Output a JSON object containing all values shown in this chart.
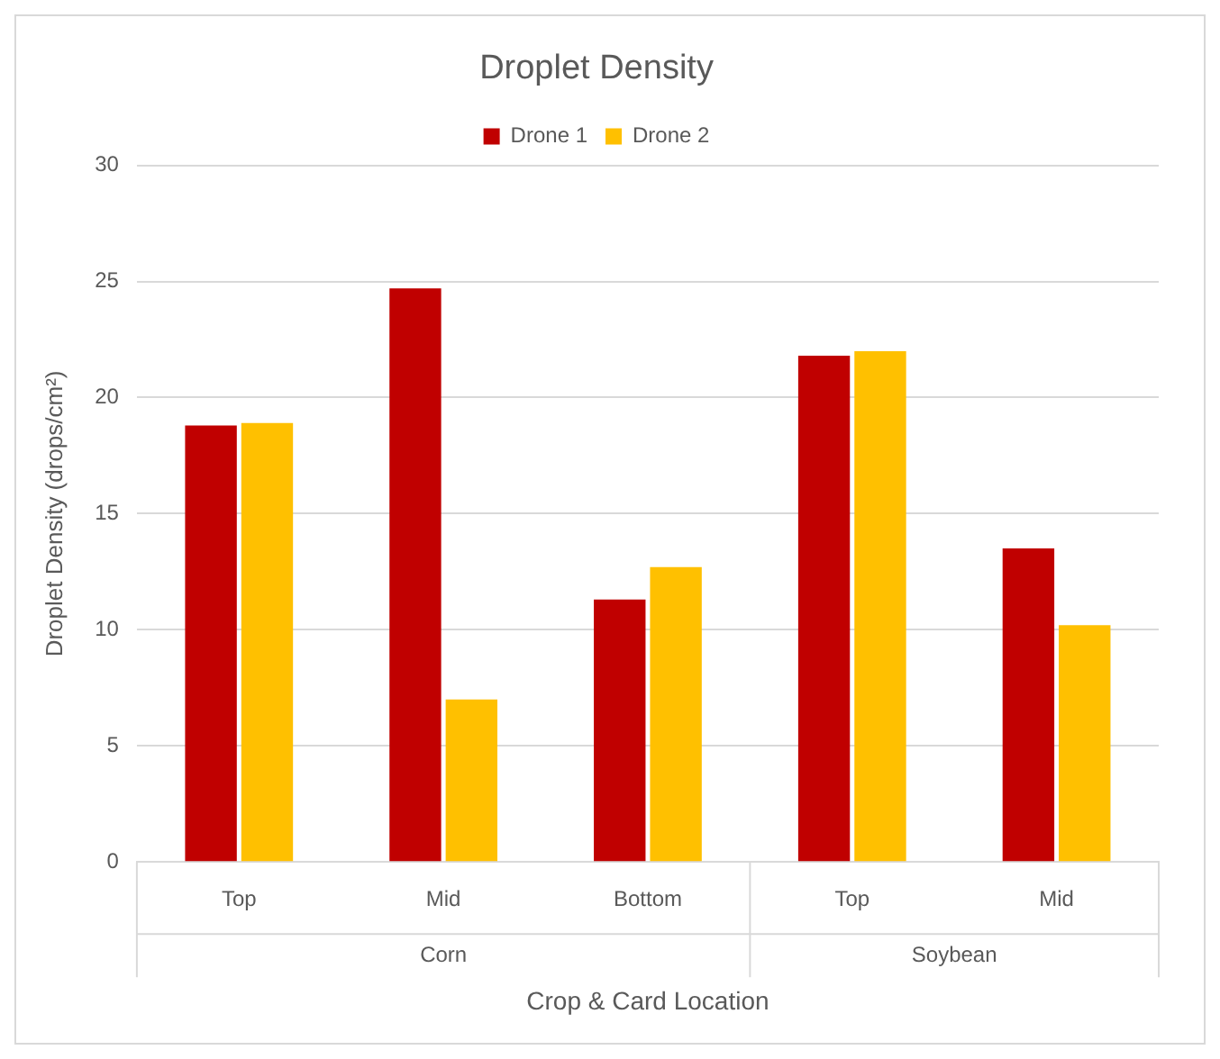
{
  "chart_data": {
    "type": "bar",
    "title": "Droplet Density",
    "xlabel": "Crop & Card Location",
    "ylabel": "Droplet Density (drops/cm²)",
    "categories": [
      "Top",
      "Mid",
      "Bottom",
      "Top",
      "Mid"
    ],
    "series": [
      {
        "name": "Drone 1",
        "color": "#c00000",
        "values": [
          18.8,
          24.7,
          11.3,
          21.8,
          13.5
        ]
      },
      {
        "name": "Drone 2",
        "color": "#ffc000",
        "values": [
          18.9,
          7.0,
          12.7,
          22.0,
          10.2
        ]
      }
    ],
    "annotations": [
      "Corn",
      "Soybean"
    ],
    "ylim": [
      0,
      30
    ],
    "yticks": [
      0,
      5,
      10,
      15,
      20,
      25,
      30
    ],
    "grid": "y",
    "legend": "top"
  }
}
